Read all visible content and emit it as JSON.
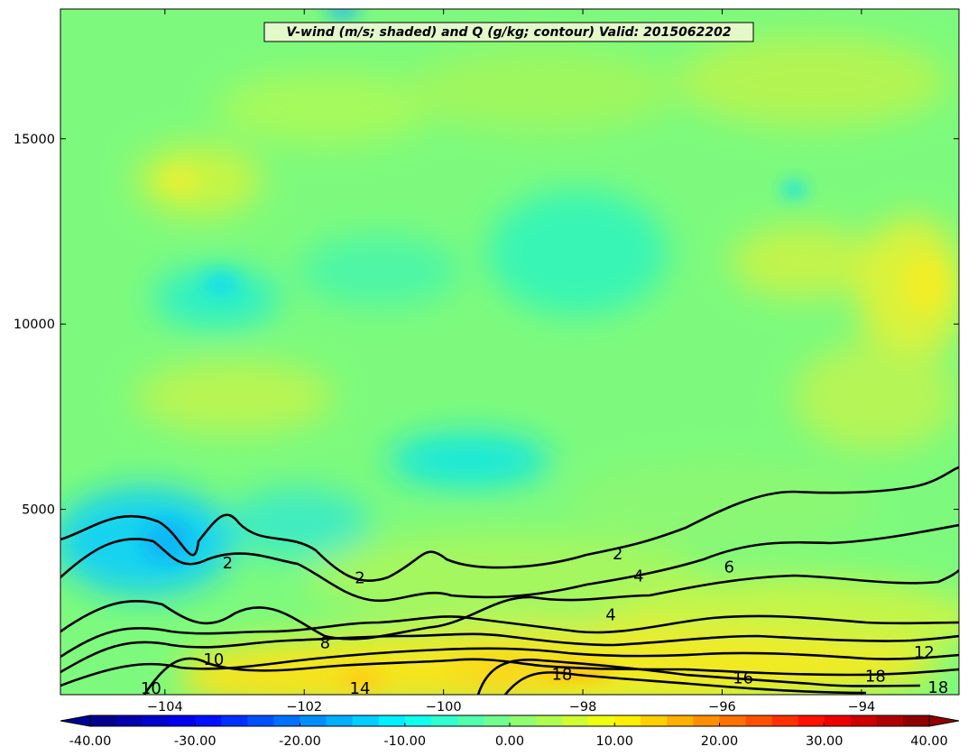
{
  "chart_data": {
    "type": "heatmap",
    "title": "V-wind (m/s; shaded) and Q (g/kg; contour) Valid: 2015062202",
    "xlabel": "",
    "ylabel": "",
    "xlim": [
      -105.5,
      -92.6
    ],
    "ylim": [
      0,
      18500
    ],
    "x_ticks": [
      -104,
      -102,
      -100,
      -98,
      -96,
      -94
    ],
    "x_tick_labels": [
      "−104",
      "−102",
      "−100",
      "−98",
      "−96",
      "−94"
    ],
    "y_ticks": [
      5000,
      10000,
      15000
    ],
    "y_tick_labels": [
      "5000",
      "10000",
      "15000"
    ],
    "colorbar": {
      "min": -40,
      "max": 40,
      "step": 2.5,
      "extend": "both",
      "colormap": "jet",
      "tick_values": [
        -40,
        -30,
        -20,
        -10,
        0,
        10,
        20,
        30,
        40
      ],
      "tick_labels": [
        "-40.00",
        "-30.00",
        "-20.00",
        "-10.00",
        "0.00",
        "10.00",
        "20.00",
        "30.00",
        "40.00"
      ]
    },
    "shaded_field": {
      "variable": "V-wind",
      "units": "m/s",
      "range_approx": [
        -12,
        10
      ]
    },
    "contour_field": {
      "variable": "Q",
      "units": "g/kg",
      "levels": [
        2,
        4,
        6,
        8,
        10,
        12,
        14,
        16,
        18
      ],
      "contour_labels": [
        {
          "text": "2",
          "x": -97.5,
          "y": 3800
        },
        {
          "text": "4",
          "x": -97.2,
          "y": 3200
        },
        {
          "text": "6",
          "x": -95.9,
          "y": 3450
        },
        {
          "text": "4",
          "x": -97.6,
          "y": 2150
        },
        {
          "text": "8",
          "x": -101.7,
          "y": 1400
        },
        {
          "text": "10",
          "x": -103.3,
          "y": 950
        },
        {
          "text": "18",
          "x": -98.3,
          "y": 550
        },
        {
          "text": "16",
          "x": -95.7,
          "y": 450
        },
        {
          "text": "12",
          "x": -93.1,
          "y": 1150
        },
        {
          "text": "18",
          "x": -93.8,
          "y": 500
        },
        {
          "text": "18",
          "x": -92.9,
          "y": 200
        },
        {
          "text": "10",
          "x": -104.2,
          "y": 100
        },
        {
          "text": "14",
          "x": -101.2,
          "y": 50
        },
        {
          "text": "2",
          "x": -103.1,
          "y": 3550
        },
        {
          "text": "2",
          "x": -101.2,
          "y": 3150
        }
      ]
    }
  }
}
